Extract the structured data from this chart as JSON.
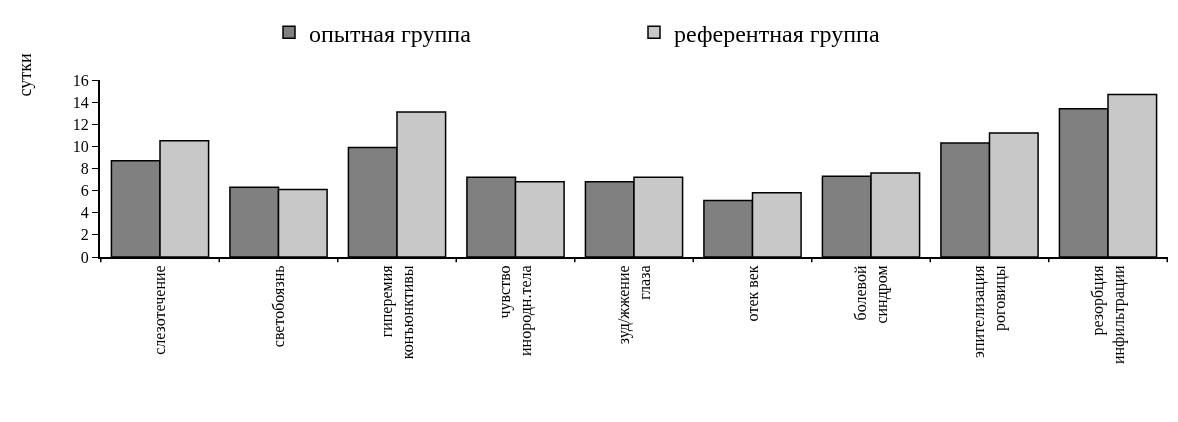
{
  "chart_data": {
    "type": "bar",
    "ylabel": "сутки",
    "categories": [
      "слезотечение",
      "светобоязнь",
      "гиперемия\nконъюнктивы",
      "чувство\nинородн.тела",
      "зуд/жжение\nглаза",
      "отек век",
      "болевой\nсиндром",
      "эпителизация\nроговицы",
      "резорбция\nинфильтрации"
    ],
    "series": [
      {
        "name": "опытная группа",
        "color": "#808080",
        "values": [
          8.7,
          6.3,
          9.9,
          7.2,
          6.8,
          5.1,
          7.3,
          10.3,
          13.4
        ]
      },
      {
        "name": "референтная группа",
        "color": "#c8c8c8",
        "values": [
          10.5,
          6.1,
          13.1,
          6.8,
          7.2,
          5.8,
          7.6,
          11.2,
          14.7
        ]
      }
    ],
    "ylim": [
      0,
      16
    ],
    "yticks": [
      0,
      2,
      4,
      6,
      8,
      10,
      12,
      14,
      16
    ],
    "grid": false,
    "legend": "top"
  }
}
